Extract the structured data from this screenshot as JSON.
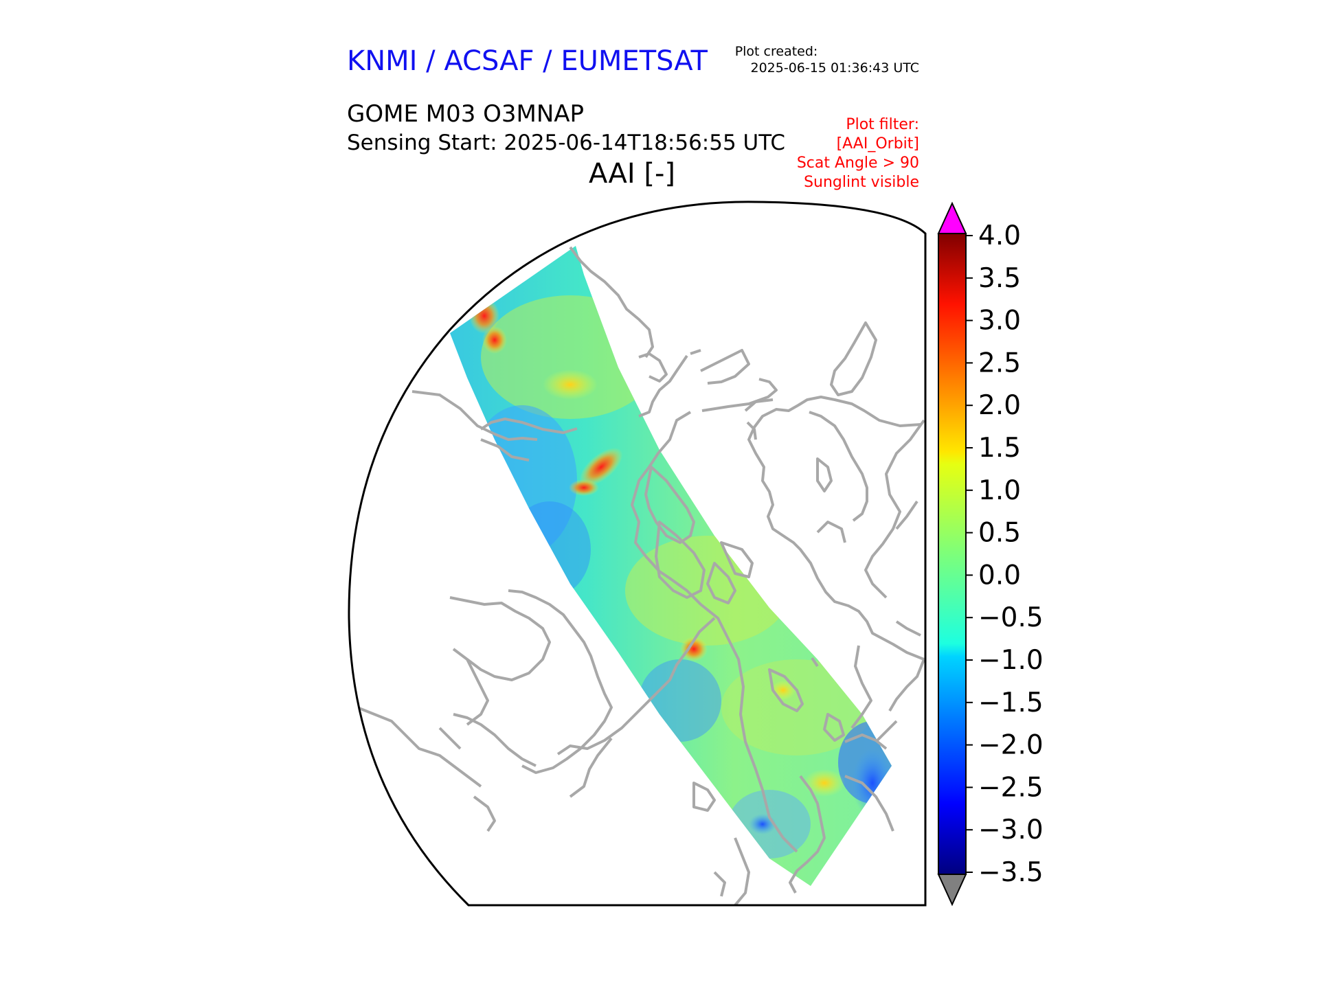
{
  "header": {
    "org_title": "KNMI / ACSAF / EUMETSAT",
    "created_label": "Plot created:",
    "created_value": "2025-06-15 01:36:43 UTC",
    "product_title": "GOME M03 O3MNAP",
    "sensing_start": "Sensing Start: 2025-06-14T18:56:55 UTC",
    "variable_title": "AAI [-]"
  },
  "filter_notes": [
    "Plot filter:",
    "[AAI_Orbit]",
    "Scat Angle > 90",
    "Sunglint visible"
  ],
  "colorbar": {
    "min": -3.5,
    "max": 4.0,
    "ticks": [
      "4.0",
      "3.5",
      "3.0",
      "2.5",
      "2.0",
      "1.5",
      "1.0",
      "0.5",
      "0.0",
      "−0.5",
      "−1.0",
      "−1.5",
      "−2.0",
      "−2.5",
      "−3.0",
      "−3.5"
    ],
    "over_color": "#ff00ff",
    "under_color": "#808080",
    "colormap": "jet"
  },
  "map": {
    "projection": "north polar stereographic",
    "coastline_color": "#a8a8a8",
    "swath_dominant_range": [
      -1.0,
      1.0
    ],
    "swath_hotspots_max": 3.5
  }
}
